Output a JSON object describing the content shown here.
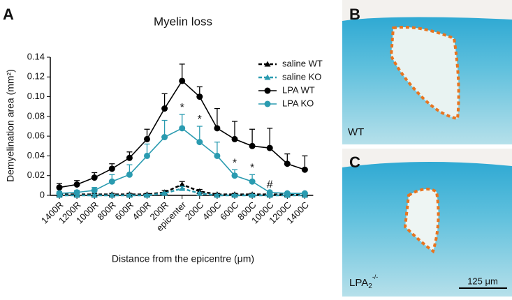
{
  "chart_data": {
    "type": "line",
    "title": "Myelin loss",
    "panel_label": "A",
    "x_label": "Distance from the epicentre (μm)",
    "y_label": "Demyelination area (mm²)",
    "categories": [
      "1400R",
      "1200R",
      "1000R",
      "800R",
      "600R",
      "400R",
      "200R",
      "epicenter",
      "200C",
      "400C",
      "600C",
      "800C",
      "1000C",
      "1200C",
      "1400C"
    ],
    "ylim": [
      0,
      0.14
    ],
    "yticks": [
      0,
      0.02,
      0.04,
      0.06,
      0.08,
      {
        "value": 0.1,
        "label": "0.10"
      },
      0.12,
      0.14
    ],
    "legend": "top-right",
    "series": [
      {
        "name": "saline WT",
        "color": "#000000",
        "dashed": true,
        "marker": "triangle",
        "values": [
          0.001,
          0.001,
          0.001,
          0.001,
          0.001,
          0.001,
          0.003,
          0.011,
          0.004,
          0.001,
          0.001,
          0.001,
          0.001,
          0.001,
          0.001
        ],
        "errors": [
          0.001,
          0.001,
          0.001,
          0.001,
          0.001,
          0.001,
          0.002,
          0.003,
          0.002,
          0.001,
          0.001,
          0.001,
          0.001,
          0.001,
          0.001
        ]
      },
      {
        "name": "saline KO",
        "color": "#2a9bb0",
        "dashed": true,
        "marker": "triangle",
        "values": [
          0,
          0,
          0,
          0,
          0,
          0,
          0.002,
          0.007,
          0.002,
          0,
          0,
          0,
          0,
          0,
          0
        ],
        "errors": [
          0.001,
          0.001,
          0.001,
          0.001,
          0.001,
          0.001,
          0.001,
          0.002,
          0.001,
          0.001,
          0.001,
          0.001,
          0.001,
          0.001,
          0.001
        ]
      },
      {
        "name": "LPA WT",
        "color": "#000000",
        "dashed": false,
        "marker": "circle",
        "values": [
          0.008,
          0.011,
          0.018,
          0.027,
          0.038,
          0.057,
          0.088,
          0.116,
          0.1,
          0.068,
          0.057,
          0.05,
          0.048,
          0.032,
          0.026
        ],
        "errors": [
          0.004,
          0.004,
          0.005,
          0.005,
          0.006,
          0.01,
          0.015,
          0.017,
          0.01,
          0.02,
          0.018,
          0.017,
          0.02,
          0.01,
          0.014
        ]
      },
      {
        "name": "LPA KO",
        "color": "#2a9bb0",
        "dashed": false,
        "marker": "circle",
        "values": [
          0.002,
          0.003,
          0.005,
          0.014,
          0.021,
          0.04,
          0.059,
          0.068,
          0.054,
          0.04,
          0.02,
          0.014,
          0.003,
          0.002,
          0.002
        ],
        "errors": [
          0.002,
          0.002,
          0.003,
          0.007,
          0.01,
          0.012,
          0.017,
          0.014,
          0.016,
          0.014,
          0.006,
          0.007,
          0.001,
          0.001,
          0.001
        ]
      }
    ],
    "annotations": [
      {
        "text": "*",
        "category": "epicenter"
      },
      {
        "text": "*",
        "category": "200C"
      },
      {
        "text": "*",
        "category": "600C"
      },
      {
        "text": "*",
        "category": "800C"
      },
      {
        "text": "#",
        "category": "1000C"
      }
    ]
  },
  "panels": [
    {
      "label": "B",
      "caption": {
        "text": "WT"
      }
    },
    {
      "label": "C",
      "caption": {
        "text": "LPA",
        "subscript": "2",
        "superscript": "-/-"
      },
      "scale_bar": "125 μm"
    }
  ]
}
